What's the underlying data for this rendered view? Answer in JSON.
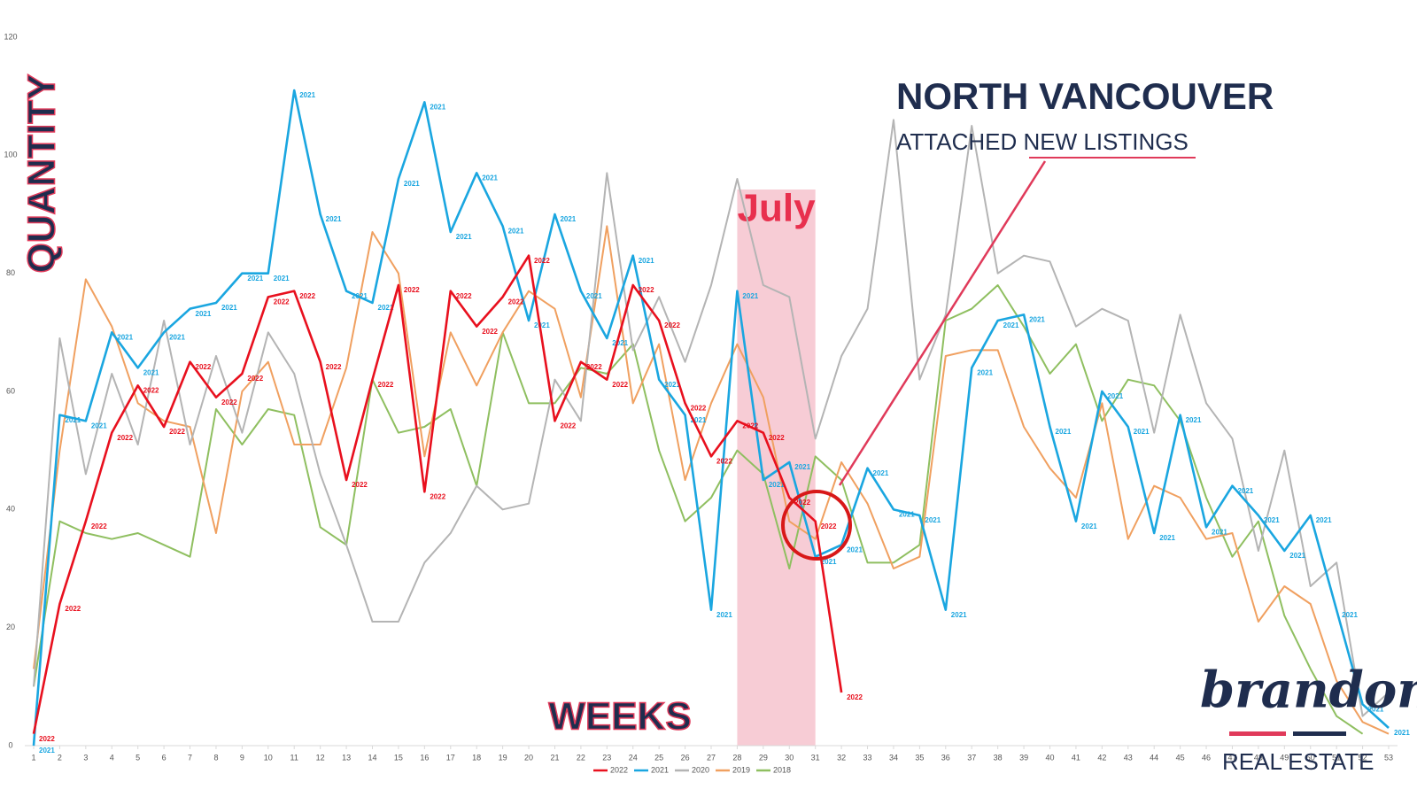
{
  "chart_data": {
    "type": "line",
    "title": "NORTH VANCOUVER",
    "subtitle": "ATTACHED NEW LISTINGS",
    "y_label": "QUANTITY",
    "x_label": "WEEKS",
    "highlight": {
      "label": "July",
      "x": [
        28,
        31
      ]
    },
    "logo": {
      "name": "brandon.",
      "tagline": "REAL ESTATE"
    },
    "legend": "bottom",
    "x": [
      1,
      2,
      3,
      4,
      5,
      6,
      7,
      8,
      9,
      10,
      11,
      12,
      13,
      14,
      15,
      16,
      17,
      18,
      19,
      20,
      21,
      22,
      23,
      24,
      25,
      26,
      27,
      28,
      29,
      30,
      31,
      32,
      33,
      34,
      35,
      36,
      37,
      38,
      39,
      40,
      41,
      42,
      43,
      44,
      45,
      46,
      47,
      48,
      49,
      50,
      51,
      52,
      53
    ],
    "xlim": [
      1,
      53
    ],
    "xticks": [
      1,
      2,
      3,
      4,
      5,
      6,
      7,
      8,
      9,
      10,
      11,
      12,
      13,
      14,
      15,
      16,
      17,
      18,
      19,
      20,
      21,
      22,
      23,
      24,
      25,
      26,
      27,
      28,
      29,
      30,
      31,
      32,
      33,
      34,
      35,
      36,
      37,
      38,
      39,
      40,
      41,
      42,
      43,
      44,
      45,
      46,
      47,
      48,
      49,
      50,
      51,
      52,
      53
    ],
    "ylim": [
      0,
      120
    ],
    "yticks": [
      0,
      20,
      40,
      60,
      80,
      100,
      120
    ],
    "series": [
      {
        "name": "2022",
        "color": "#e8101e",
        "point_labels": true,
        "values": [
          2,
          24,
          38,
          53,
          61,
          54,
          65,
          59,
          63,
          76,
          77,
          65,
          45,
          62,
          78,
          43,
          77,
          71,
          76,
          83,
          55,
          65,
          62,
          78,
          72,
          58,
          49,
          55,
          53,
          42,
          38,
          9,
          null,
          null,
          null,
          null,
          null,
          null,
          null,
          null,
          null,
          null,
          null,
          null,
          null,
          null,
          null,
          null,
          null,
          null,
          null,
          null,
          null
        ]
      },
      {
        "name": "2021",
        "color": "#1aa6e0",
        "point_labels": true,
        "values": [
          0,
          56,
          55,
          70,
          64,
          70,
          74,
          75,
          80,
          80,
          111,
          90,
          77,
          75,
          96,
          109,
          87,
          97,
          88,
          72,
          90,
          77,
          69,
          83,
          62,
          56,
          23,
          77,
          45,
          48,
          32,
          34,
          47,
          40,
          39,
          23,
          64,
          72,
          73,
          54,
          38,
          60,
          54,
          36,
          56,
          37,
          44,
          39,
          33,
          39,
          23,
          7,
          3
        ]
      },
      {
        "name": "2020",
        "color": "#b4b4b4",
        "values": [
          10,
          69,
          46,
          63,
          51,
          72,
          51,
          66,
          53,
          70,
          63,
          46,
          34,
          21,
          21,
          31,
          36,
          44,
          40,
          41,
          62,
          55,
          97,
          67,
          76,
          65,
          78,
          96,
          78,
          76,
          52,
          66,
          74,
          106,
          62,
          73,
          105,
          80,
          83,
          82,
          71,
          74,
          72,
          53,
          73,
          58,
          52,
          33,
          50,
          27,
          31,
          5,
          9
        ]
      },
      {
        "name": "2019",
        "color": "#f0a060",
        "values": [
          13,
          50,
          79,
          71,
          58,
          55,
          54,
          36,
          60,
          65,
          51,
          51,
          64,
          87,
          80,
          49,
          70,
          61,
          70,
          77,
          74,
          59,
          88,
          58,
          68,
          45,
          58,
          68,
          59,
          38,
          35,
          48,
          41,
          30,
          32,
          66,
          67,
          67,
          54,
          47,
          42,
          58,
          35,
          44,
          42,
          35,
          36,
          21,
          27,
          24,
          11,
          4,
          2
        ]
      },
      {
        "name": "2018",
        "color": "#8fbf60",
        "values": [
          10,
          38,
          36,
          35,
          36,
          34,
          32,
          57,
          51,
          57,
          56,
          37,
          34,
          62,
          53,
          54,
          57,
          44,
          70,
          58,
          58,
          64,
          63,
          68,
          50,
          38,
          42,
          50,
          46,
          30,
          49,
          45,
          31,
          31,
          34,
          72,
          74,
          78,
          71,
          63,
          68,
          55,
          62,
          61,
          55,
          42,
          32,
          38,
          22,
          13,
          5,
          2,
          null
        ]
      }
    ]
  }
}
